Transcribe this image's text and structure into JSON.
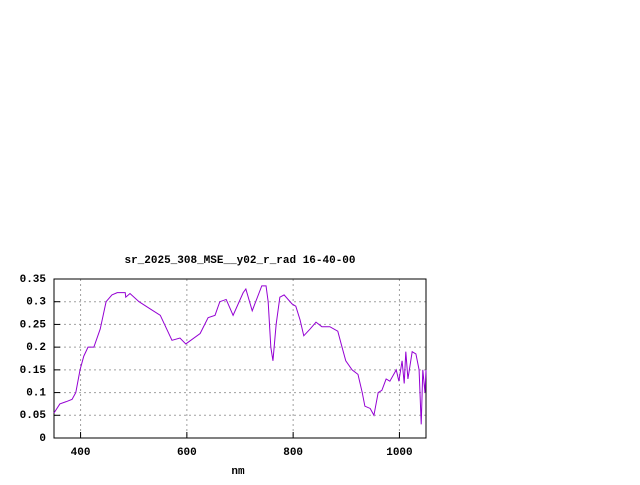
{
  "chart_data": {
    "type": "line",
    "title": "sr_2025_308_MSE__y02_r_rad 16-40-00",
    "xlabel": "nm",
    "x": [
      350,
      361,
      373,
      384,
      391,
      399,
      406,
      414,
      425,
      437,
      448,
      459,
      469,
      484,
      485,
      493,
      510,
      530,
      550,
      572,
      587,
      598,
      625,
      640,
      653,
      662,
      674,
      687,
      706,
      711,
      723,
      741,
      749,
      753,
      758,
      762,
      768,
      775,
      783,
      798,
      805,
      813,
      820,
      832,
      843,
      854,
      869,
      884,
      892,
      899,
      911,
      922,
      930,
      935,
      945,
      952,
      960,
      967,
      975,
      982,
      994,
      999,
      1005,
      1009,
      1012,
      1016,
      1024,
      1031,
      1037,
      1041,
      1044,
      1048,
      1050
    ],
    "series": [
      {
        "name": "sr_2025_308_MSE__y02_r_rad",
        "color": "#9400d3",
        "values": [
          0.055,
          0.075,
          0.08,
          0.085,
          0.1,
          0.15,
          0.18,
          0.2,
          0.2,
          0.24,
          0.3,
          0.315,
          0.32,
          0.32,
          0.31,
          0.318,
          0.3,
          0.285,
          0.27,
          0.215,
          0.22,
          0.207,
          0.23,
          0.265,
          0.27,
          0.3,
          0.305,
          0.27,
          0.32,
          0.328,
          0.28,
          0.335,
          0.335,
          0.3,
          0.2,
          0.17,
          0.25,
          0.31,
          0.315,
          0.295,
          0.29,
          0.26,
          0.225,
          0.24,
          0.255,
          0.245,
          0.245,
          0.235,
          0.2,
          0.17,
          0.15,
          0.14,
          0.1,
          0.07,
          0.065,
          0.05,
          0.1,
          0.105,
          0.13,
          0.125,
          0.15,
          0.125,
          0.17,
          0.12,
          0.19,
          0.13,
          0.19,
          0.185,
          0.15,
          0.03,
          0.15,
          0.1,
          0.15
        ]
      }
    ],
    "xlim": [
      350,
      1050
    ],
    "xticks": [
      400,
      600,
      800,
      1000
    ],
    "ylim": [
      0,
      0.35
    ],
    "yticks": [
      0,
      0.05,
      0.1,
      0.15,
      0.2,
      0.25,
      0.3,
      0.35
    ],
    "grid": true
  }
}
